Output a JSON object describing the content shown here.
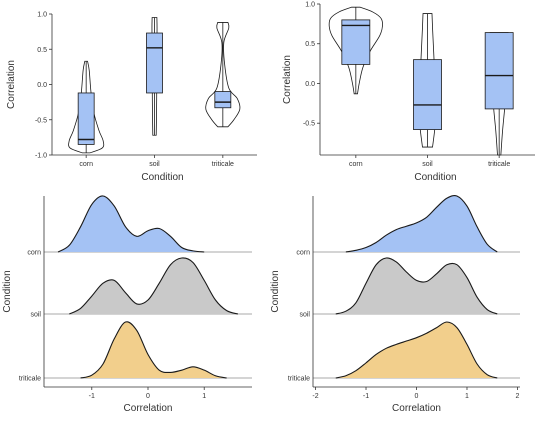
{
  "colors": {
    "corn": "#a4c2f4",
    "soil": "#c9c9c9",
    "triticale": "#f2cf8c",
    "box_fill": "#a4c2f4",
    "line": "#1a1a1a"
  },
  "chart_data": [
    {
      "type": "violin-box",
      "xlabel": "Condition",
      "ylabel": "Correlation",
      "categories": [
        "corn",
        "soil",
        "triticale"
      ],
      "ylim": [
        -1.0,
        1.0
      ],
      "yticks": [
        1.0,
        0.5,
        0.0,
        -0.5,
        -1.0
      ],
      "ytick_labels": [
        "1.0",
        "0.5",
        "0.0",
        "-0.5",
        "-1.0"
      ],
      "violins": [
        {
          "category": "corn",
          "min": -0.97,
          "max": 0.33,
          "profile": [
            [
              -0.97,
              0.22
            ],
            [
              -0.9,
              0.95
            ],
            [
              -0.8,
              1.0
            ],
            [
              -0.65,
              0.75
            ],
            [
              -0.4,
              0.45
            ],
            [
              -0.1,
              0.28
            ],
            [
              0.2,
              0.18
            ],
            [
              0.33,
              0.08
            ]
          ]
        },
        {
          "category": "soil",
          "min": -0.72,
          "max": 0.95,
          "profile": [
            [
              -0.72,
              0.1
            ],
            [
              -0.4,
              0.12
            ],
            [
              -0.1,
              0.13
            ],
            [
              0.2,
              0.13
            ],
            [
              0.5,
              0.14
            ],
            [
              0.8,
              0.15
            ],
            [
              0.95,
              0.14
            ]
          ]
        },
        {
          "category": "triticale",
          "min": -0.6,
          "max": 0.88,
          "profile": [
            [
              -0.6,
              0.3
            ],
            [
              -0.5,
              0.65
            ],
            [
              -0.35,
              1.0
            ],
            [
              -0.2,
              0.85
            ],
            [
              -0.05,
              0.35
            ],
            [
              0.3,
              0.1
            ],
            [
              0.6,
              0.06
            ],
            [
              0.8,
              0.35
            ],
            [
              0.88,
              0.3
            ]
          ]
        }
      ],
      "boxes": [
        {
          "category": "corn",
          "whisker_low": -0.97,
          "q1": -0.85,
          "median": -0.78,
          "q3": -0.12,
          "whisker_high": 0.33
        },
        {
          "category": "soil",
          "whisker_low": -0.72,
          "q1": -0.12,
          "median": 0.52,
          "q3": 0.73,
          "whisker_high": 0.95
        },
        {
          "category": "triticale",
          "whisker_low": -0.6,
          "q1": -0.33,
          "median": -0.25,
          "q3": -0.1,
          "whisker_high": 0.88
        }
      ]
    },
    {
      "type": "violin-box",
      "xlabel": "Condition",
      "ylabel": "Correlation",
      "categories": [
        "corn",
        "soil",
        "triticale"
      ],
      "ylim": [
        -0.9,
        1.0
      ],
      "yticks": [
        1.0,
        0.5,
        0.0,
        -0.5
      ],
      "ytick_labels": [
        "1.0",
        "0.5",
        "0.0",
        "-0.5"
      ],
      "violins": [
        {
          "category": "corn",
          "min": -0.13,
          "max": 0.96,
          "profile": [
            [
              -0.13,
              0.06
            ],
            [
              0.0,
              0.12
            ],
            [
              0.2,
              0.25
            ],
            [
              0.4,
              0.5
            ],
            [
              0.6,
              0.85
            ],
            [
              0.72,
              0.95
            ],
            [
              0.82,
              0.9
            ],
            [
              0.9,
              0.6
            ],
            [
              0.96,
              0.15
            ]
          ]
        },
        {
          "category": "soil",
          "min": -0.8,
          "max": 0.88,
          "profile": [
            [
              -0.8,
              0.18
            ],
            [
              -0.5,
              0.28
            ],
            [
              -0.2,
              0.3
            ],
            [
              0.1,
              0.26
            ],
            [
              0.4,
              0.22
            ],
            [
              0.7,
              0.18
            ],
            [
              0.88,
              0.16
            ]
          ]
        },
        {
          "category": "triticale",
          "min": -0.9,
          "max": 0.64,
          "profile": [
            [
              -0.9,
              0.06
            ],
            [
              -0.6,
              0.12
            ],
            [
              -0.3,
              0.2
            ],
            [
              0.0,
              0.26
            ],
            [
              0.3,
              0.3
            ],
            [
              0.5,
              0.32
            ],
            [
              0.64,
              0.32
            ]
          ]
        }
      ],
      "boxes": [
        {
          "category": "corn",
          "whisker_low": -0.13,
          "q1": 0.24,
          "median": 0.73,
          "q3": 0.8,
          "whisker_high": 0.96
        },
        {
          "category": "soil",
          "whisker_low": -0.8,
          "q1": -0.58,
          "median": -0.27,
          "q3": 0.3,
          "whisker_high": 0.88
        },
        {
          "category": "triticale",
          "whisker_low": -0.9,
          "q1": -0.32,
          "median": 0.1,
          "q3": 0.64,
          "whisker_high": 0.64
        }
      ]
    },
    {
      "type": "ridgeline",
      "xlabel": "Correlation",
      "ylabel": "Condition",
      "categories": [
        "corn",
        "soil",
        "triticale"
      ],
      "xlim": [
        -1.85,
        1.85
      ],
      "xticks": [
        -1,
        0,
        1
      ],
      "xtick_labels": [
        "-1",
        "0",
        "1"
      ],
      "series": [
        {
          "name": "corn",
          "x": [
            -1.6,
            -1.4,
            -1.2,
            -1.0,
            -0.8,
            -0.6,
            -0.4,
            -0.2,
            0.0,
            0.2,
            0.4,
            0.6,
            0.8,
            1.0
          ],
          "density": [
            0.0,
            0.12,
            0.45,
            0.85,
            1.0,
            0.82,
            0.45,
            0.28,
            0.38,
            0.42,
            0.28,
            0.08,
            0.02,
            0.0
          ]
        },
        {
          "name": "soil",
          "x": [
            -1.4,
            -1.2,
            -1.0,
            -0.8,
            -0.6,
            -0.4,
            -0.2,
            0.0,
            0.2,
            0.4,
            0.6,
            0.8,
            1.0,
            1.2,
            1.4,
            1.6
          ],
          "density": [
            0.0,
            0.1,
            0.32,
            0.55,
            0.6,
            0.38,
            0.18,
            0.25,
            0.55,
            0.88,
            1.0,
            0.92,
            0.6,
            0.25,
            0.06,
            0.0
          ]
        },
        {
          "name": "triticale",
          "x": [
            -1.2,
            -1.0,
            -0.8,
            -0.6,
            -0.4,
            -0.2,
            0.0,
            0.2,
            0.4,
            0.6,
            0.8,
            1.0,
            1.2,
            1.4
          ],
          "density": [
            0.0,
            0.05,
            0.25,
            0.7,
            1.0,
            0.85,
            0.42,
            0.14,
            0.1,
            0.14,
            0.2,
            0.14,
            0.04,
            0.0
          ]
        }
      ]
    },
    {
      "type": "ridgeline",
      "xlabel": "Correlation",
      "ylabel": "Condition",
      "categories": [
        "corn",
        "soil",
        "triticale"
      ],
      "xlim": [
        -2.05,
        2.05
      ],
      "xticks": [
        -2,
        -1,
        0,
        1,
        2
      ],
      "xtick_labels": [
        "-2",
        "-1",
        "0",
        "1",
        "2"
      ],
      "series": [
        {
          "name": "corn",
          "x": [
            -1.4,
            -1.2,
            -1.0,
            -0.8,
            -0.6,
            -0.4,
            -0.2,
            0.0,
            0.2,
            0.4,
            0.6,
            0.8,
            1.0,
            1.2,
            1.4,
            1.6
          ],
          "density": [
            0.0,
            0.03,
            0.08,
            0.17,
            0.3,
            0.4,
            0.46,
            0.52,
            0.62,
            0.8,
            0.96,
            1.0,
            0.82,
            0.45,
            0.14,
            0.0
          ]
        },
        {
          "name": "soil",
          "x": [
            -1.6,
            -1.4,
            -1.2,
            -1.0,
            -0.8,
            -0.6,
            -0.4,
            -0.2,
            0.0,
            0.2,
            0.4,
            0.6,
            0.8,
            1.0,
            1.2,
            1.4,
            1.6
          ],
          "density": [
            0.0,
            0.05,
            0.2,
            0.55,
            0.88,
            1.0,
            0.93,
            0.75,
            0.6,
            0.58,
            0.72,
            0.88,
            0.88,
            0.65,
            0.3,
            0.08,
            0.0
          ]
        },
        {
          "name": "triticale",
          "x": [
            -1.6,
            -1.4,
            -1.2,
            -1.0,
            -0.8,
            -0.6,
            -0.4,
            -0.2,
            0.0,
            0.2,
            0.4,
            0.6,
            0.8,
            1.0,
            1.2,
            1.4,
            1.6
          ],
          "density": [
            0.0,
            0.04,
            0.13,
            0.27,
            0.42,
            0.53,
            0.6,
            0.66,
            0.72,
            0.8,
            0.9,
            1.0,
            0.9,
            0.6,
            0.25,
            0.06,
            0.0
          ]
        }
      ]
    }
  ]
}
